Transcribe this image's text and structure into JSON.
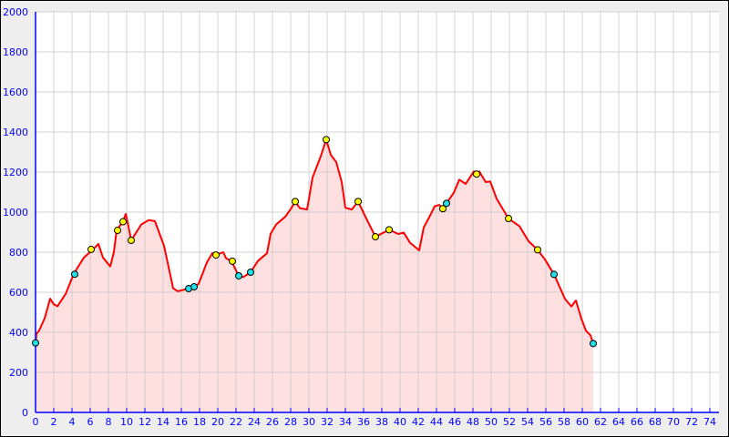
{
  "chart_data": {
    "type": "area",
    "title": "",
    "xlabel": "",
    "ylabel": "",
    "xlim": [
      0,
      75
    ],
    "ylim": [
      0,
      2000
    ],
    "x_ticks": [
      0,
      2,
      4,
      6,
      8,
      10,
      12,
      14,
      16,
      18,
      20,
      22,
      24,
      26,
      28,
      30,
      32,
      34,
      36,
      38,
      40,
      42,
      44,
      46,
      48,
      50,
      52,
      54,
      56,
      58,
      60,
      62,
      64,
      66,
      68,
      70,
      72,
      74
    ],
    "y_ticks": [
      0,
      200,
      400,
      600,
      800,
      1000,
      1200,
      1400,
      1600,
      1800,
      2000
    ],
    "grid": true,
    "colors": {
      "line": "#ff0000",
      "fill": "#ffe0e0",
      "axis": "#0000ff",
      "grid": "#c8c8c8",
      "marker_yellow": "#ffff00",
      "marker_cyan": "#22e0e8"
    },
    "series": [
      {
        "x": [
          0,
          0.1,
          0.4,
          1.0,
          1.6,
          2.0,
          2.4,
          3.3,
          4.1,
          4.3,
          5.3,
          6.1,
          6.9,
          7.4,
          8.2,
          8.6,
          8.9,
          9.6,
          9.9,
          10.1,
          10.5,
          11.6,
          12.4,
          13.1,
          14.1,
          15.1,
          15.6,
          16.8,
          17.4,
          17.9,
          18.8,
          19.4,
          19.8,
          20.6,
          20.9,
          21.5,
          22.3,
          22.8,
          23.6,
          24.4,
          25.4,
          25.8,
          26.4,
          27.4,
          28.0,
          28.5,
          29.0,
          29.8,
          30.4,
          31.3,
          31.9,
          32.4,
          33.0,
          33.6,
          34.0,
          34.7,
          35.4,
          36.3,
          37.3,
          38.8,
          39.8,
          40.4,
          41.1,
          42.1,
          42.6,
          43.3,
          43.8,
          44.3,
          44.7,
          45.1,
          45.9,
          46.5,
          47.2,
          48.1,
          48.4,
          48.7,
          49.4,
          49.9,
          50.6,
          51.9,
          53.1,
          54.1,
          55.1,
          55.9,
          56.9,
          58.1,
          58.8,
          59.3,
          59.9,
          60.4,
          60.9,
          61.2
        ],
        "y": [
          347,
          392,
          409,
          470,
          568,
          540,
          530,
          591,
          682,
          700,
          773,
          805,
          841,
          773,
          729,
          801,
          909,
          955,
          991,
          950,
          859,
          938,
          960,
          955,
          832,
          620,
          605,
          618,
          627,
          642,
          749,
          795,
          786,
          800,
          770,
          755,
          682,
          676,
          700,
          756,
          795,
          892,
          938,
          977,
          1015,
          1053,
          1020,
          1013,
          1173,
          1279,
          1362,
          1286,
          1250,
          1150,
          1022,
          1013,
          1053,
          968,
          877,
          912,
          891,
          898,
          847,
          809,
          923,
          983,
          1029,
          1036,
          1017,
          1044,
          1097,
          1162,
          1141,
          1203,
          1190,
          1203,
          1150,
          1153,
          1067,
          968,
          930,
          855,
          812,
          764,
          689,
          567,
          529,
          559,
          468,
          408,
          385,
          344
        ]
      }
    ],
    "markers": [
      {
        "x": 0,
        "y": 347,
        "color": "cyan"
      },
      {
        "x": 4.3,
        "y": 690,
        "color": "cyan"
      },
      {
        "x": 6.1,
        "y": 814,
        "color": "yellow"
      },
      {
        "x": 9.0,
        "y": 909,
        "color": "yellow"
      },
      {
        "x": 9.6,
        "y": 952,
        "color": "yellow"
      },
      {
        "x": 10.5,
        "y": 859,
        "color": "yellow"
      },
      {
        "x": 16.8,
        "y": 618,
        "color": "cyan"
      },
      {
        "x": 17.4,
        "y": 627,
        "color": "cyan"
      },
      {
        "x": 19.8,
        "y": 786,
        "color": "yellow"
      },
      {
        "x": 21.6,
        "y": 755,
        "color": "yellow"
      },
      {
        "x": 22.3,
        "y": 682,
        "color": "cyan"
      },
      {
        "x": 23.6,
        "y": 700,
        "color": "cyan"
      },
      {
        "x": 28.5,
        "y": 1053,
        "color": "yellow"
      },
      {
        "x": 31.9,
        "y": 1362,
        "color": "yellow"
      },
      {
        "x": 35.4,
        "y": 1053,
        "color": "yellow"
      },
      {
        "x": 37.3,
        "y": 877,
        "color": "yellow"
      },
      {
        "x": 38.8,
        "y": 912,
        "color": "yellow"
      },
      {
        "x": 44.7,
        "y": 1017,
        "color": "yellow"
      },
      {
        "x": 45.1,
        "y": 1044,
        "color": "cyan"
      },
      {
        "x": 48.4,
        "y": 1190,
        "color": "yellow"
      },
      {
        "x": 51.9,
        "y": 968,
        "color": "yellow"
      },
      {
        "x": 55.1,
        "y": 812,
        "color": "yellow"
      },
      {
        "x": 56.9,
        "y": 689,
        "color": "cyan"
      },
      {
        "x": 61.2,
        "y": 344,
        "color": "cyan"
      }
    ]
  }
}
